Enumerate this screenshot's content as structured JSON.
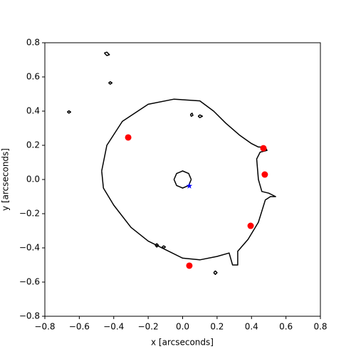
{
  "chart_data": {
    "type": "scatter",
    "xlabel": "x [arcseconds]",
    "ylabel": "y [arcseconds]",
    "xlim": [
      -0.8,
      0.8
    ],
    "ylim": [
      -0.8,
      0.8
    ],
    "xticks": [
      {
        "value": -0.8,
        "label": "−0.8"
      },
      {
        "value": -0.6,
        "label": "−0.6"
      },
      {
        "value": -0.4,
        "label": "−0.4"
      },
      {
        "value": -0.2,
        "label": "−0.2"
      },
      {
        "value": 0,
        "label": "0.0"
      },
      0.2,
      0.4,
      0.6,
      0.8
    ],
    "yticks": [
      {
        "value": -0.8,
        "label": "−0.8"
      },
      {
        "value": -0.6,
        "label": "−0.6"
      },
      {
        "value": -0.4,
        "label": "−0.4"
      },
      {
        "value": -0.2,
        "label": "−0.2"
      },
      {
        "value": 0,
        "label": "0.0"
      },
      0.2,
      0.4,
      0.6,
      0.8
    ],
    "curve_color": "#000000",
    "curves": [
      {
        "x": [
          -0.47,
          -0.44,
          -0.35,
          -0.2,
          -0.05,
          0.1,
          0.18,
          0.25,
          0.33,
          0.4,
          0.44,
          0.48,
          0.49,
          0.45,
          0.43,
          0.44,
          0.46,
          0.5,
          0.54,
          0.51,
          0.48,
          0.44,
          0.38,
          0.32,
          0.32,
          0.29,
          0.27,
          0.2,
          0.1,
          0.0,
          -0.1,
          -0.2,
          -0.3,
          -0.4,
          -0.46,
          -0.47
        ],
        "y": [
          0.05,
          0.2,
          0.34,
          0.44,
          0.47,
          0.46,
          0.4,
          0.33,
          0.26,
          0.21,
          0.19,
          0.19,
          0.17,
          0.16,
          0.12,
          0.0,
          -0.07,
          -0.08,
          -0.1,
          -0.1,
          -0.12,
          -0.25,
          -0.35,
          -0.42,
          -0.5,
          -0.5,
          -0.43,
          -0.45,
          -0.47,
          -0.46,
          -0.41,
          -0.36,
          -0.28,
          -0.15,
          -0.05,
          0.05
        ]
      },
      {
        "x": [
          0.05,
          0.035,
          0.0,
          -0.035,
          -0.05,
          -0.035,
          0.0,
          0.035,
          0.05
        ],
        "y": [
          0.0,
          0.035,
          0.05,
          0.035,
          0.0,
          -0.035,
          -0.05,
          -0.035,
          0.0
        ]
      },
      {
        "x": [
          -0.455,
          -0.44,
          -0.425,
          -0.44,
          -0.455
        ],
        "y": [
          0.74,
          0.745,
          0.73,
          0.725,
          0.74
        ]
      },
      {
        "x": [
          -0.43,
          -0.42,
          -0.41,
          -0.42,
          -0.43
        ],
        "y": [
          0.565,
          0.572,
          0.565,
          0.558,
          0.565
        ]
      },
      {
        "x": [
          -0.67,
          -0.66,
          -0.65,
          -0.66,
          -0.67
        ],
        "y": [
          0.395,
          0.402,
          0.395,
          0.388,
          0.395
        ]
      },
      {
        "x": [
          0.045,
          0.055,
          0.06,
          0.05,
          0.045
        ],
        "y": [
          0.38,
          0.388,
          0.375,
          0.37,
          0.38
        ]
      },
      {
        "x": [
          0.09,
          0.1,
          0.115,
          0.1,
          0.09
        ],
        "y": [
          0.37,
          0.378,
          0.37,
          0.362,
          0.37
        ]
      },
      {
        "x": [
          0.18,
          0.19,
          0.2,
          0.19,
          0.18
        ],
        "y": [
          -0.545,
          -0.535,
          -0.545,
          -0.555,
          -0.545
        ]
      },
      {
        "x": [
          -0.16,
          -0.15,
          -0.14,
          -0.15,
          -0.16
        ],
        "y": [
          -0.385,
          -0.375,
          -0.385,
          -0.395,
          -0.385
        ]
      },
      {
        "x": [
          -0.12,
          -0.11,
          -0.1,
          -0.11,
          -0.12
        ],
        "y": [
          -0.395,
          -0.388,
          -0.395,
          -0.402,
          -0.395
        ]
      }
    ],
    "points": {
      "color": "#ff0000",
      "x": [
        -0.316,
        0.469,
        0.477,
        0.395,
        0.039
      ],
      "y": [
        0.246,
        0.183,
        0.029,
        -0.271,
        -0.504
      ]
    },
    "star": {
      "color": "#0000ff",
      "x": [
        0.039
      ],
      "y": [
        -0.038
      ]
    }
  }
}
